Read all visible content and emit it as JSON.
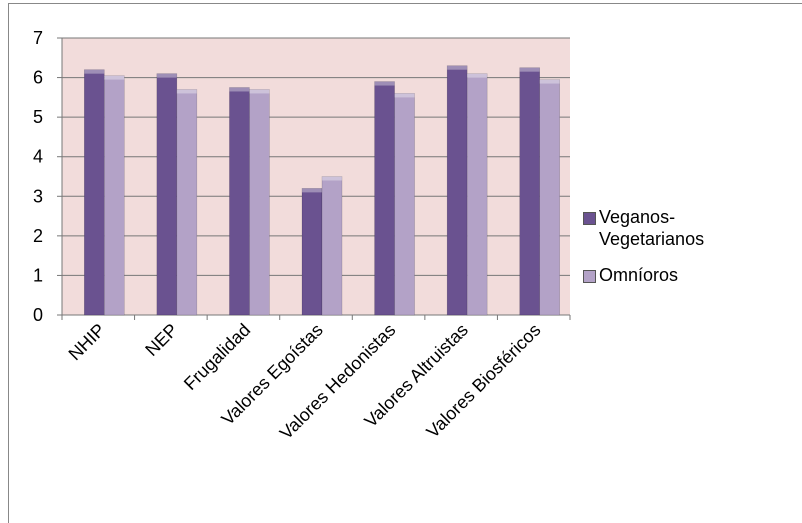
{
  "chart_data": {
    "type": "bar",
    "categories": [
      "NHIP",
      "NEP",
      "Frugalidad",
      "Valores Egoístas",
      "Valores Hedonistas",
      "Valores Altruistas",
      "Valores Biosféricos"
    ],
    "series": [
      {
        "name": "Veganos-Vegetarianos",
        "color": "#6a5290",
        "values": [
          6.2,
          6.1,
          5.75,
          3.2,
          5.9,
          6.3,
          6.25
        ]
      },
      {
        "name": "Omníoros",
        "color": "#b3a2c7",
        "values": [
          6.05,
          5.7,
          5.7,
          3.5,
          5.6,
          6.1,
          5.95
        ]
      }
    ],
    "ylim": [
      0,
      7
    ],
    "yticks": [
      0,
      1,
      2,
      3,
      4,
      5,
      6,
      7
    ],
    "grid": true,
    "plot_background": "#f2dcdb",
    "legend": "right"
  }
}
